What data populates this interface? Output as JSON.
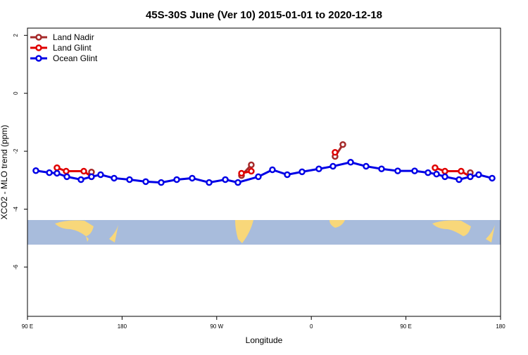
{
  "chart_data": {
    "type": "line",
    "title": "45S-30S June (Ver 10)   2015-01-01 to 2020-12-18",
    "x_label": "Longitude",
    "y_label": "XCO2 - MLO trend (ppm)",
    "xlim": [
      90,
      540
    ],
    "xticks": [
      {
        "value": 90,
        "label": "90 E"
      },
      180,
      {
        "value": 270,
        "label": "90 W"
      },
      {
        "value": 360,
        "label": "0"
      },
      {
        "value": 450,
        "label": "90 E"
      },
      {
        "value": 540,
        "label": "180"
      }
    ],
    "ylim": [
      -7.7,
      2.25
    ],
    "yticks": [
      2,
      0,
      -2,
      -4,
      -6
    ],
    "legend": "top-left",
    "series": [
      {
        "name": "Land Nadir",
        "color": "#a52a2a",
        "x": [
          150.9,
          null,
          293.6,
          302.9,
          null,
          382.6,
          390,
          null,
          511.2
        ],
        "values": [
          -2.72,
          null,
          -2.84,
          -2.47,
          null,
          -2.18,
          -1.77,
          null,
          -2.74
        ]
      },
      {
        "name": "Land Glint",
        "color": "#e00000",
        "x": [
          118.1,
          126.8,
          143.6,
          150.9,
          null,
          293.6,
          302.9,
          null,
          382.6,
          null,
          477.7,
          487.1,
          502.5,
          511.2
        ],
        "values": [
          -2.57,
          -2.69,
          -2.69,
          -2.88,
          null,
          -2.76,
          -2.69,
          null,
          -2.04,
          null,
          -2.57,
          -2.69,
          -2.69,
          -2.88
        ]
      },
      {
        "name": "Ocean Glint",
        "color": "#0000e6",
        "x": [
          98.0,
          110.8,
          118.1,
          127.5,
          140.9,
          150.9,
          159.6,
          172.4,
          187.1,
          202.5,
          217.2,
          232.0,
          246.7,
          262.8,
          278.2,
          290.2,
          309.6,
          323.0,
          337.1,
          351.2,
          367.2,
          380.6,
          397.4,
          412.1,
          426.8,
          442.2,
          458.3,
          471.0,
          479.1,
          487.1,
          500.5,
          511.2,
          519.2,
          532.0
        ],
        "values": [
          -2.67,
          -2.74,
          -2.76,
          -2.88,
          -2.98,
          -2.88,
          -2.81,
          -2.93,
          -2.98,
          -3.05,
          -3.08,
          -2.98,
          -2.93,
          -3.08,
          -2.98,
          -3.08,
          -2.88,
          -2.64,
          -2.81,
          -2.71,
          -2.61,
          -2.52,
          -2.38,
          -2.52,
          -2.61,
          -2.68,
          -2.68,
          -2.74,
          -2.79,
          -2.88,
          -2.98,
          -2.88,
          -2.81,
          -2.93
        ]
      }
    ]
  }
}
